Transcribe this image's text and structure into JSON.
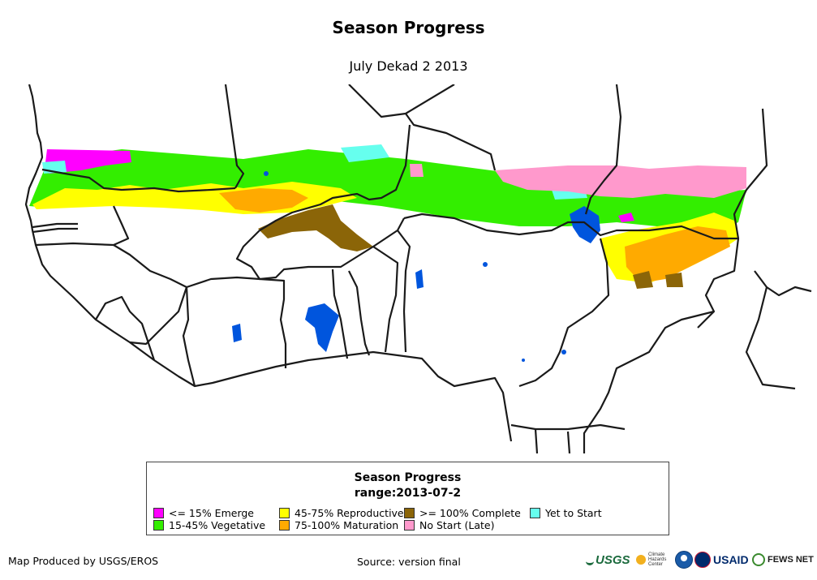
{
  "title": "Season Progress",
  "subtitle": "July Dekad 2 2013",
  "legend": {
    "title_line1": "Season Progress",
    "title_line2": "range:2013-07-2",
    "items": [
      {
        "label": "<= 15% Emerge",
        "color": "#ff00ff"
      },
      {
        "label": "15-45% Vegetative",
        "color": "#33ee00"
      },
      {
        "label": "45-75% Reproductive",
        "color": "#ffff00"
      },
      {
        "label": "75-100% Maturation",
        "color": "#ffaa00"
      },
      {
        "label": ">= 100% Complete",
        "color": "#8b6508"
      },
      {
        "label": "No Start (Late)",
        "color": "#ff99cc"
      },
      {
        "label": "Yet to Start",
        "color": "#66ffee"
      }
    ]
  },
  "map": {
    "water_color": "#0055dd",
    "boundary_color": "#1a1a1a",
    "no_data_color": "#ffffff"
  },
  "footer": {
    "produced_by": "Map Produced by USGS/EROS",
    "source": "Source: version final"
  },
  "logos": {
    "usgs": "USGS",
    "usgs_tagline": "science for a changing world",
    "chc_line1": "Climate",
    "chc_line2": "Hazards",
    "chc_line3": "Center",
    "usaid": "USAID",
    "fews": "FEWS NET"
  }
}
